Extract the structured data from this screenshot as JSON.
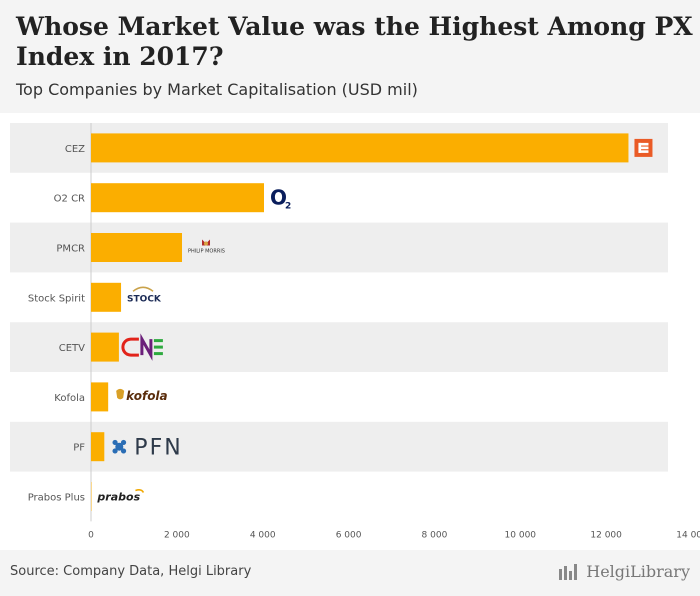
{
  "header": {
    "title": "Whose Market Value was the Highest Among PX Index in 2017?",
    "subtitle": "Top Companies by Market Capitalisation (USD mil)"
  },
  "footer": {
    "source": "Source: Company Data, Helgi Library",
    "brand": "HelgiLibrary"
  },
  "chart_data": {
    "type": "bar",
    "orientation": "horizontal",
    "title": "Whose Market Value was the Highest Among PX Index in 2017?",
    "subtitle": "Top Companies by Market Capitalisation (USD mil)",
    "categories": [
      "CEZ",
      "O2 CR",
      "PMCR",
      "Stock Spirit",
      "CETV",
      "Kofola",
      "PF",
      "Prabos Plus"
    ],
    "values": [
      12520,
      4030,
      2120,
      700,
      650,
      400,
      310,
      10
    ],
    "xlim": [
      0,
      14000
    ],
    "xticks": [
      0,
      2000,
      4000,
      6000,
      8000,
      10000,
      12000,
      14000
    ],
    "xtick_labels": [
      "0",
      "2 000",
      "4 000",
      "6 000",
      "8 000",
      "10 000",
      "12 000",
      "14 000"
    ],
    "bar_color": "#FBAE00",
    "band_color": "#EEEEEE",
    "logos": [
      "cez-logo",
      "o2-logo",
      "philip-morris-logo",
      "stock-logo",
      "cetv-logo",
      "kofola-logo",
      "pfn-logo",
      "prabos-logo"
    ],
    "logo_text": {
      "o2": "O",
      "o2_sub": "2",
      "pmcr": "PHILIP MORRIS",
      "stock": "STOCK",
      "kofola": "kofola",
      "pfn": "PFN",
      "prabos": "prabos"
    }
  }
}
